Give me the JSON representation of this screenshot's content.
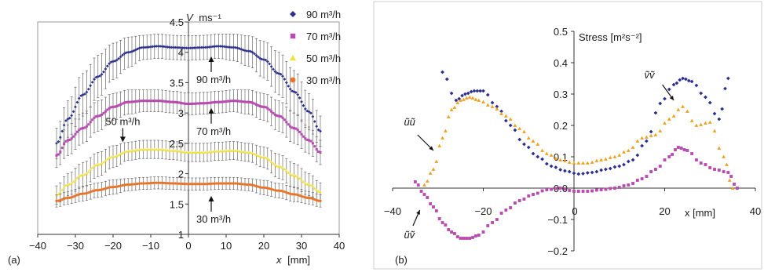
{
  "chart_data": [
    {
      "panel_label": "(a)",
      "type": "line",
      "xlabel_var": "x",
      "xlabel_unit": "[mm]",
      "ylabel_var": "V",
      "ylabel_unit": "ms⁻¹",
      "xlim": [
        -40,
        40
      ],
      "ylim": [
        1,
        4.5
      ],
      "xticks": [
        "−40",
        "−30",
        "−20",
        "−10",
        "0",
        "10",
        "20",
        "30",
        "40"
      ],
      "xtick_values": [
        -40,
        -30,
        -20,
        -10,
        0,
        10,
        20,
        30,
        40
      ],
      "yticks": [
        "1",
        "1.5",
        "2",
        "2.5",
        "3",
        "3.5",
        "4",
        "4.5"
      ],
      "ytick_values": [
        1,
        1.5,
        2,
        2.5,
        3,
        3.5,
        4,
        4.5
      ],
      "error_bars": true,
      "legend_position": "top-right",
      "series": [
        {
          "name": "90 m³/h",
          "color": "#2b2f8f",
          "marker": "diamond",
          "x": [
            -35,
            -32,
            -28,
            -24,
            -20,
            -16,
            -12,
            -8,
            -4,
            0,
            4,
            8,
            12,
            16,
            20,
            24,
            28,
            32,
            35
          ],
          "y": [
            2.5,
            2.9,
            3.3,
            3.6,
            3.85,
            4.0,
            4.08,
            4.1,
            4.08,
            4.07,
            4.08,
            4.1,
            4.08,
            4.02,
            3.88,
            3.65,
            3.35,
            3.02,
            2.7
          ],
          "err": [
            0.25,
            0.3,
            0.35,
            0.35,
            0.3,
            0.25,
            0.2,
            0.2,
            0.2,
            0.2,
            0.2,
            0.2,
            0.22,
            0.25,
            0.3,
            0.35,
            0.35,
            0.3,
            0.25
          ]
        },
        {
          "name": "70 m³/h",
          "color": "#b84ab0",
          "marker": "square",
          "x": [
            -35,
            -32,
            -28,
            -24,
            -20,
            -16,
            -12,
            -8,
            -4,
            0,
            4,
            8,
            12,
            16,
            20,
            24,
            28,
            32,
            35
          ],
          "y": [
            2.3,
            2.55,
            2.75,
            2.95,
            3.1,
            3.18,
            3.2,
            3.2,
            3.18,
            3.15,
            3.16,
            3.18,
            3.2,
            3.18,
            3.1,
            2.95,
            2.75,
            2.55,
            2.35
          ],
          "err": [
            0.2,
            0.25,
            0.25,
            0.25,
            0.22,
            0.2,
            0.18,
            0.18,
            0.18,
            0.18,
            0.18,
            0.18,
            0.18,
            0.2,
            0.22,
            0.25,
            0.25,
            0.22,
            0.2
          ]
        },
        {
          "name": "50 m³/h",
          "color": "#f0e040",
          "marker": "triangle",
          "x": [
            -35,
            -32,
            -28,
            -24,
            -20,
            -16,
            -12,
            -8,
            -4,
            0,
            4,
            8,
            12,
            16,
            20,
            24,
            28,
            32,
            35
          ],
          "y": [
            1.65,
            1.82,
            1.98,
            2.15,
            2.28,
            2.37,
            2.4,
            2.4,
            2.38,
            2.35,
            2.35,
            2.37,
            2.38,
            2.35,
            2.27,
            2.12,
            1.97,
            1.82,
            1.7
          ],
          "err": [
            0.15,
            0.18,
            0.2,
            0.2,
            0.18,
            0.15,
            0.15,
            0.15,
            0.15,
            0.15,
            0.15,
            0.15,
            0.15,
            0.15,
            0.17,
            0.2,
            0.2,
            0.18,
            0.15
          ]
        },
        {
          "name": "30 m³/h",
          "color": "#e8742a",
          "marker": "circle",
          "x": [
            -35,
            -32,
            -28,
            -24,
            -20,
            -16,
            -12,
            -8,
            -4,
            0,
            4,
            8,
            12,
            16,
            20,
            24,
            28,
            32,
            35
          ],
          "y": [
            1.55,
            1.6,
            1.67,
            1.73,
            1.78,
            1.82,
            1.84,
            1.85,
            1.84,
            1.83,
            1.83,
            1.84,
            1.84,
            1.82,
            1.77,
            1.72,
            1.66,
            1.6,
            1.55
          ],
          "err": [
            0.1,
            0.1,
            0.12,
            0.12,
            0.12,
            0.1,
            0.1,
            0.1,
            0.1,
            0.1,
            0.1,
            0.1,
            0.1,
            0.1,
            0.12,
            0.12,
            0.12,
            0.1,
            0.1
          ]
        }
      ],
      "annotations": [
        {
          "text": "90 m³/h",
          "x": 5,
          "y": 3.7
        },
        {
          "text": "70 m³/h",
          "x": 5,
          "y": 2.85
        },
        {
          "text": "50 m³/h",
          "x": -17,
          "y": 2.7
        },
        {
          "text": "30 m³/h",
          "x": 5,
          "y": 1.4
        }
      ]
    },
    {
      "panel_label": "(b)",
      "type": "scatter",
      "ylabel": "Stress [m²s⁻²]",
      "xlabel": "x [mm]",
      "xlim": [
        -40,
        40
      ],
      "ylim": [
        -0.2,
        0.5
      ],
      "xticks": [
        "−40",
        "−20",
        "0",
        "20",
        "40"
      ],
      "xtick_values": [
        -40,
        -20,
        0,
        20,
        40
      ],
      "yticks": [
        "−0.2",
        "−0.1",
        "0.0",
        "0.1",
        "0.2",
        "0.3",
        "0.4",
        "0.5"
      ],
      "ytick_values": [
        -0.2,
        -0.1,
        0.0,
        0.1,
        0.2,
        0.3,
        0.4,
        0.5
      ],
      "series": [
        {
          "name": "vv",
          "color": "#2b2f8f",
          "marker": "diamond",
          "x": [
            -29,
            -26,
            -24,
            -22,
            -20,
            -17,
            -14,
            -11,
            -8,
            -5,
            -2,
            1,
            4,
            7,
            10,
            13,
            16,
            19,
            22,
            24,
            26,
            29,
            32,
            34
          ],
          "y": [
            0.37,
            0.28,
            0.3,
            0.31,
            0.31,
            0.26,
            0.2,
            0.14,
            0.1,
            0.07,
            0.055,
            0.045,
            0.05,
            0.06,
            0.07,
            0.09,
            0.15,
            0.27,
            0.33,
            0.35,
            0.34,
            0.29,
            0.22,
            0.35
          ]
        },
        {
          "name": "uu",
          "color": "#f0a020",
          "marker": "triangle",
          "x": [
            -33,
            -31,
            -29,
            -27,
            -25,
            -23,
            -21,
            -18,
            -15,
            -12,
            -9,
            -6,
            -3,
            0,
            3,
            6,
            9,
            12,
            15,
            18,
            21,
            24,
            27,
            30,
            33,
            35
          ],
          "y": [
            0.01,
            0.06,
            0.16,
            0.25,
            0.28,
            0.29,
            0.28,
            0.26,
            0.23,
            0.19,
            0.15,
            0.11,
            0.09,
            0.08,
            0.08,
            0.09,
            0.1,
            0.12,
            0.16,
            0.17,
            0.22,
            0.26,
            0.2,
            0.21,
            0.1,
            0.0
          ]
        },
        {
          "name": "uv",
          "color": "#b84ab0",
          "marker": "square",
          "x": [
            -35,
            -33,
            -31,
            -29,
            -27,
            -25,
            -23,
            -21,
            -18,
            -15,
            -12,
            -9,
            -6,
            -3,
            0,
            3,
            6,
            9,
            12,
            15,
            18,
            21,
            23,
            25,
            28,
            31,
            34,
            36
          ],
          "y": [
            0.02,
            -0.02,
            -0.06,
            -0.11,
            -0.14,
            -0.16,
            -0.16,
            -0.15,
            -0.11,
            -0.07,
            -0.04,
            -0.02,
            -0.005,
            0.0,
            -0.01,
            -0.01,
            -0.005,
            0.0,
            0.01,
            0.03,
            0.06,
            0.1,
            0.13,
            0.12,
            0.08,
            0.06,
            0.05,
            0.0
          ]
        }
      ],
      "annotations": [
        {
          "text": "ũũ",
          "series": "uu"
        },
        {
          "text": "ũṽ",
          "series": "uv"
        },
        {
          "text": "ṽṽ",
          "series": "vv"
        }
      ]
    }
  ]
}
